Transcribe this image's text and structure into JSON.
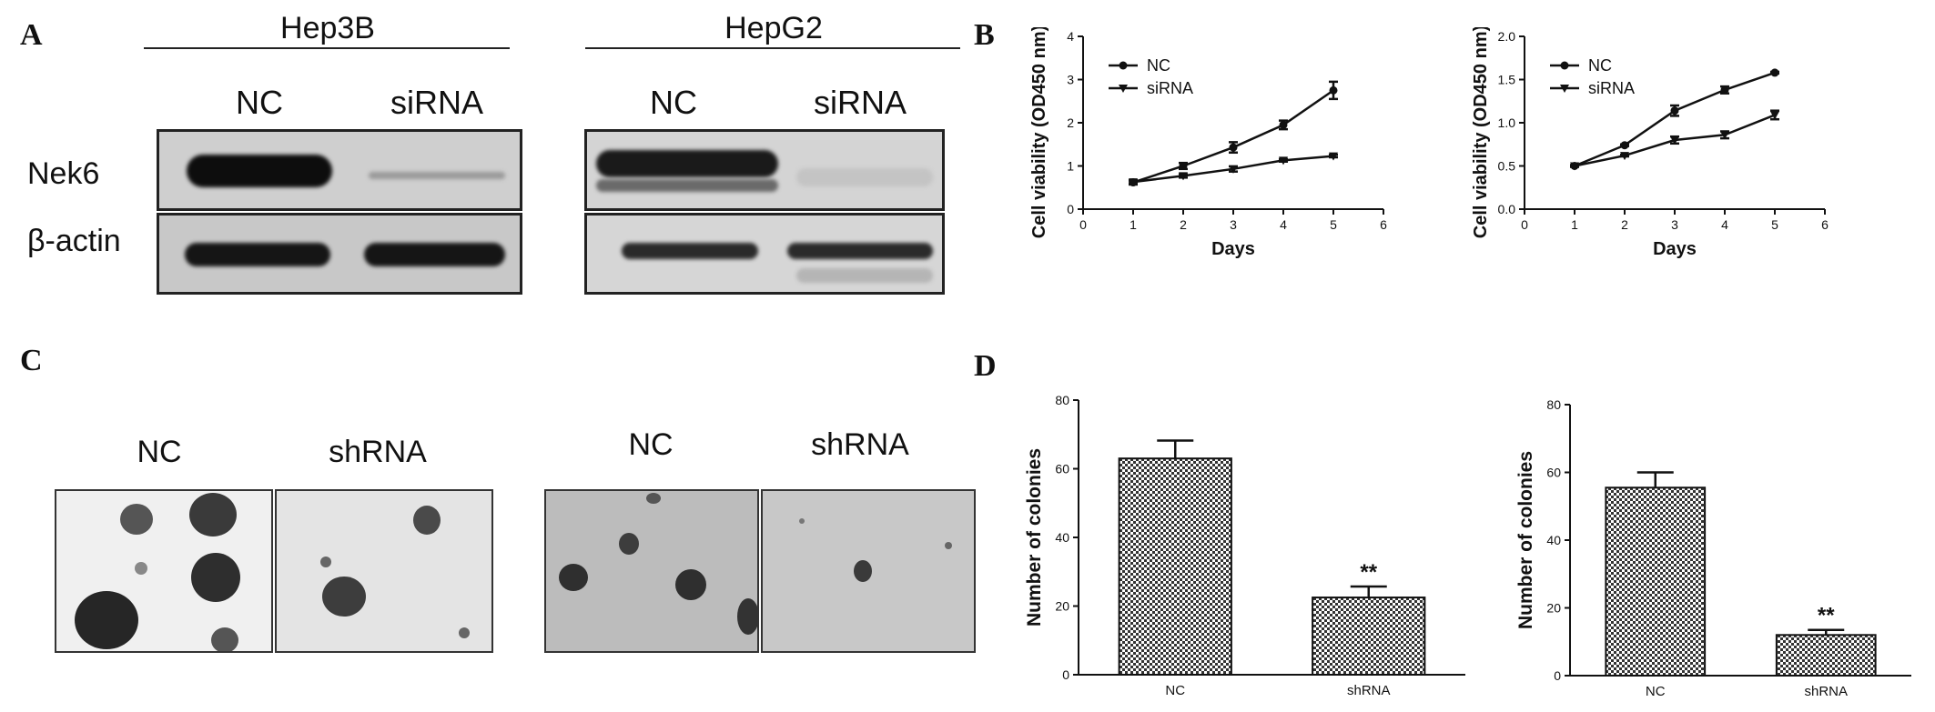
{
  "panels": {
    "a": {
      "letter": "A",
      "groups": [
        {
          "title": "Hep3B",
          "lanes": [
            "NC",
            "siRNA"
          ]
        },
        {
          "title": "HepG2",
          "lanes": [
            "NC",
            "siRNA"
          ]
        }
      ],
      "rows": [
        "Nek6",
        "β-actin"
      ]
    },
    "b": {
      "letter": "B"
    },
    "c": {
      "letter": "C",
      "groups": [
        {
          "lanes": [
            "NC",
            "shRNA"
          ]
        },
        {
          "lanes": [
            "NC",
            "shRNA"
          ]
        }
      ]
    },
    "d": {
      "letter": "D"
    }
  },
  "chart_data": [
    {
      "id": "b-left",
      "type": "line",
      "title": "",
      "xlabel": "Days",
      "ylabel": "Cell viability (OD450 nm)",
      "xlim": [
        0,
        6
      ],
      "ylim": [
        0,
        4
      ],
      "xticks": [
        "0",
        "1",
        "2",
        "3",
        "4",
        "5",
        "6"
      ],
      "yticks": [
        "0",
        "1",
        "2",
        "3",
        "4"
      ],
      "x": [
        1,
        2,
        3,
        4,
        5
      ],
      "series": [
        {
          "name": "NC",
          "marker": "circle",
          "values": [
            0.62,
            1.0,
            1.43,
            1.95,
            2.75
          ],
          "errors": [
            0.05,
            0.07,
            0.12,
            0.1,
            0.2
          ]
        },
        {
          "name": "siRNA",
          "marker": "triangle-down",
          "values": [
            0.63,
            0.77,
            0.93,
            1.13,
            1.23
          ],
          "errors": [
            0.03,
            0.04,
            0.06,
            0.03,
            0.03
          ]
        }
      ],
      "legend": "top-left"
    },
    {
      "id": "b-right",
      "type": "line",
      "title": "",
      "xlabel": "Days",
      "ylabel": "Cell viability (OD450 nm)",
      "xlim": [
        0,
        6
      ],
      "ylim": [
        0,
        2
      ],
      "xticks": [
        "0",
        "1",
        "2",
        "3",
        "4",
        "5",
        "6"
      ],
      "yticks": [
        "0.0",
        "0.5",
        "1.0",
        "1.5",
        "2.0"
      ],
      "x": [
        1,
        2,
        3,
        4,
        5
      ],
      "series": [
        {
          "name": "NC",
          "marker": "circle",
          "values": [
            0.5,
            0.74,
            1.14,
            1.38,
            1.58
          ],
          "errors": [
            0.01,
            0.01,
            0.06,
            0.04,
            0.01
          ]
        },
        {
          "name": "siRNA",
          "marker": "triangle-down",
          "values": [
            0.5,
            0.62,
            0.8,
            0.86,
            1.09
          ],
          "errors": [
            0.01,
            0.01,
            0.04,
            0.04,
            0.05
          ]
        }
      ],
      "legend": "top-left"
    },
    {
      "id": "d-left",
      "type": "bar",
      "title": "",
      "xlabel": "",
      "ylabel": "Number of colonies",
      "ylim": [
        0,
        80
      ],
      "yticks": [
        "0",
        "20",
        "40",
        "60",
        "80"
      ],
      "categories": [
        "NC",
        "shRNA"
      ],
      "values": [
        63,
        22.5
      ],
      "errors": [
        5.2,
        3.2
      ],
      "annotations": [
        "",
        "**"
      ]
    },
    {
      "id": "d-right",
      "type": "bar",
      "title": "",
      "xlabel": "",
      "ylabel": "Number of colonies",
      "ylim": [
        0,
        80
      ],
      "yticks": [
        "0",
        "20",
        "40",
        "60",
        "80"
      ],
      "categories": [
        "NC",
        "shRNA"
      ],
      "values": [
        55.5,
        12
      ],
      "errors": [
        4.5,
        1.5
      ],
      "annotations": [
        "",
        "**"
      ]
    }
  ]
}
